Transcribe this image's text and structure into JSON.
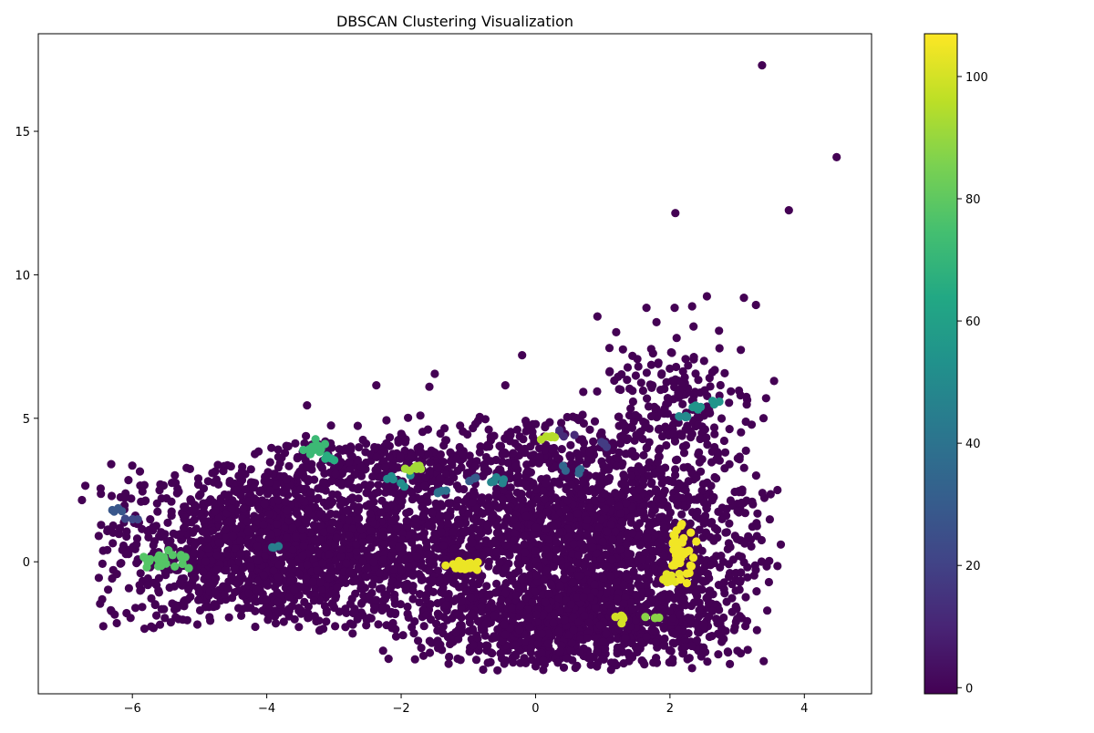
{
  "chart_data": {
    "type": "scatter",
    "title": "DBSCAN Clustering Visualization",
    "xlabel": "",
    "ylabel": "",
    "xlim": [
      -7.4,
      5.0
    ],
    "ylim": [
      -4.6,
      18.4
    ],
    "x_ticks": [
      -6,
      -4,
      -2,
      0,
      2,
      4
    ],
    "y_ticks": [
      0,
      5,
      10,
      15
    ],
    "grid": false,
    "colorbar": {
      "label": "",
      "range": [
        -1,
        107
      ],
      "ticks": [
        0,
        20,
        40,
        60,
        80,
        100
      ],
      "colormap": "viridis"
    },
    "outliers": [
      {
        "x": 3.37,
        "y": 17.3,
        "label": -1
      },
      {
        "x": 4.48,
        "y": 14.1,
        "label": -1
      },
      {
        "x": 2.08,
        "y": 12.15,
        "label": -1
      },
      {
        "x": 3.77,
        "y": 12.25,
        "label": -1
      },
      {
        "x": 2.55,
        "y": 9.25,
        "label": -1
      },
      {
        "x": 3.1,
        "y": 9.2,
        "label": -1
      },
      {
        "x": 3.28,
        "y": 8.95,
        "label": -1
      },
      {
        "x": 0.92,
        "y": 8.55,
        "label": -1
      },
      {
        "x": 1.65,
        "y": 8.85,
        "label": -1
      },
      {
        "x": 2.07,
        "y": 8.85,
        "label": -1
      },
      {
        "x": 2.33,
        "y": 8.9,
        "label": -1
      },
      {
        "x": 1.8,
        "y": 8.35,
        "label": -1
      },
      {
        "x": 2.35,
        "y": 8.2,
        "label": -1
      },
      {
        "x": 1.2,
        "y": 8.0,
        "label": -1
      },
      {
        "x": 2.73,
        "y": 8.05,
        "label": -1
      },
      {
        "x": 2.1,
        "y": 7.8,
        "label": -1
      },
      {
        "x": 1.1,
        "y": 7.45,
        "label": -1
      },
      {
        "x": 1.3,
        "y": 7.4,
        "label": -1
      },
      {
        "x": -0.2,
        "y": 7.2,
        "label": -1
      },
      {
        "x": 3.55,
        "y": 6.3,
        "label": -1
      },
      {
        "x": -3.4,
        "y": 5.45,
        "label": -1
      },
      {
        "x": -2.37,
        "y": 6.15,
        "label": -1
      },
      {
        "x": -1.5,
        "y": 6.55,
        "label": -1
      },
      {
        "x": -1.58,
        "y": 6.1,
        "label": -1
      },
      {
        "x": -0.45,
        "y": 6.15,
        "label": -1
      },
      {
        "x": 3.05,
        "y": 5.8,
        "label": -1
      },
      {
        "x": 3.43,
        "y": 5.7,
        "label": -1
      },
      {
        "x": -6.7,
        "y": 2.65,
        "label": -1
      },
      {
        "x": -6.75,
        "y": 2.15,
        "label": -1
      },
      {
        "x": -6.5,
        "y": 0.9,
        "label": -1
      },
      {
        "x": 3.6,
        "y": 2.5,
        "label": -1
      },
      {
        "x": 3.65,
        "y": 0.6,
        "label": -1
      },
      {
        "x": 3.6,
        "y": -0.15,
        "label": -1
      },
      {
        "x": -1.7,
        "y": -3.0,
        "label": -1
      }
    ],
    "noise_regions": [
      {
        "label": -1,
        "x_range": [
          -6.2,
          -1.2
        ],
        "y_range": [
          -2.2,
          3.2
        ],
        "points": 1800
      },
      {
        "label": -1,
        "x_range": [
          -2.0,
          3.2
        ],
        "y_range": [
          -3.5,
          4.8
        ],
        "points": 2400
      },
      {
        "label": -1,
        "x_range": [
          -1.3,
          2.8
        ],
        "y_range": [
          -3.4,
          -1.0
        ],
        "points": 600
      },
      {
        "label": -1,
        "x_range": [
          1.0,
          3.0
        ],
        "y_range": [
          4.0,
          7.5
        ],
        "points": 160
      },
      {
        "label": -1,
        "x_range": [
          -4.0,
          -1.0
        ],
        "y_range": [
          2.5,
          4.5
        ],
        "points": 200
      }
    ],
    "clusters": [
      {
        "label": 104,
        "center": [
          -1.05,
          -0.15
        ],
        "spread": [
          0.12,
          0.1
        ],
        "points": 30
      },
      {
        "label": 105,
        "center": [
          2.15,
          0.3
        ],
        "spread": [
          0.12,
          0.45
        ],
        "points": 32
      },
      {
        "label": 103,
        "center": [
          2.0,
          -0.6
        ],
        "spread": [
          0.05,
          0.2
        ],
        "points": 12
      },
      {
        "label": 100,
        "center": [
          1.3,
          -1.95
        ],
        "spread": [
          0.05,
          0.08
        ],
        "points": 6
      },
      {
        "label": 95,
        "center": [
          0.2,
          4.3
        ],
        "spread": [
          0.05,
          0.08
        ],
        "points": 6
      },
      {
        "label": 92,
        "center": [
          -1.8,
          3.3
        ],
        "spread": [
          0.1,
          0.05
        ],
        "points": 8
      },
      {
        "label": 88,
        "center": [
          1.75,
          -1.95
        ],
        "spread": [
          0.05,
          0.05
        ],
        "points": 4
      },
      {
        "label": 78,
        "center": [
          -5.55,
          0.05
        ],
        "spread": [
          0.2,
          0.15
        ],
        "points": 26
      },
      {
        "label": 72,
        "center": [
          -3.25,
          4.0
        ],
        "spread": [
          0.12,
          0.12
        ],
        "points": 12
      },
      {
        "label": 66,
        "center": [
          -3.1,
          3.6
        ],
        "spread": [
          0.05,
          0.05
        ],
        "points": 5
      },
      {
        "label": 55,
        "center": [
          2.45,
          5.45
        ],
        "spread": [
          0.15,
          0.08
        ],
        "points": 8
      },
      {
        "label": 52,
        "center": [
          -2.1,
          2.9
        ],
        "spread": [
          0.1,
          0.1
        ],
        "points": 6
      },
      {
        "label": 50,
        "center": [
          2.25,
          5.1
        ],
        "spread": [
          0.06,
          0.06
        ],
        "points": 5
      },
      {
        "label": 48,
        "center": [
          -0.6,
          2.8
        ],
        "spread": [
          0.06,
          0.06
        ],
        "points": 5
      },
      {
        "label": 45,
        "center": [
          -3.9,
          0.5
        ],
        "spread": [
          0.04,
          0.04
        ],
        "points": 3
      },
      {
        "label": 40,
        "center": [
          -1.4,
          2.45
        ],
        "spread": [
          0.05,
          0.05
        ],
        "points": 4
      },
      {
        "label": 35,
        "center": [
          0.55,
          3.15
        ],
        "spread": [
          0.06,
          0.06
        ],
        "points": 5
      },
      {
        "label": 30,
        "center": [
          -0.9,
          2.9
        ],
        "spread": [
          0.06,
          0.06
        ],
        "points": 4
      },
      {
        "label": 28,
        "center": [
          -6.25,
          1.75
        ],
        "spread": [
          0.05,
          0.05
        ],
        "points": 4
      },
      {
        "label": 22,
        "center": [
          -6.0,
          1.5
        ],
        "spread": [
          0.05,
          0.05
        ],
        "points": 3
      },
      {
        "label": 18,
        "center": [
          1.05,
          4.05
        ],
        "spread": [
          0.06,
          0.06
        ],
        "points": 4
      },
      {
        "label": 12,
        "center": [
          0.4,
          4.4
        ],
        "spread": [
          0.07,
          0.07
        ],
        "points": 4
      }
    ]
  }
}
